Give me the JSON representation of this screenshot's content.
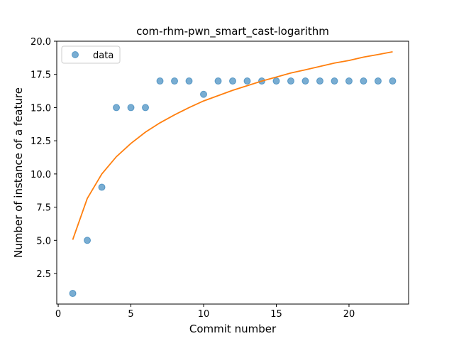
{
  "chart_data": {
    "type": "scatter",
    "title": "com-rhm-pwn_smart_cast-logarithm",
    "xlabel": "Commit number",
    "ylabel": "Number of instance of a feature",
    "xlim": [
      -0.1,
      24.1
    ],
    "ylim": [
      0.2,
      20.0
    ],
    "xticks": [
      0,
      5,
      10,
      15,
      20
    ],
    "yticks": [
      2.5,
      5.0,
      7.5,
      10.0,
      12.5,
      15.0,
      17.5,
      20.0
    ],
    "ytick_labels": [
      "2.5",
      "5.0",
      "7.5",
      "10.0",
      "12.5",
      "15.0",
      "17.5",
      "20.0"
    ],
    "legend_position": "upper-left",
    "grid": false,
    "series": [
      {
        "name": "data",
        "kind": "scatter",
        "color": "#1f77b4",
        "x": [
          1,
          2,
          3,
          4,
          5,
          6,
          7,
          8,
          9,
          10,
          11,
          12,
          13,
          14,
          15,
          16,
          17,
          18,
          19,
          20,
          21,
          22,
          23
        ],
        "y": [
          1,
          5,
          9,
          15,
          15,
          15,
          17,
          17,
          17,
          16,
          17,
          17,
          17,
          17,
          17,
          17,
          17,
          17,
          17,
          17,
          17,
          17,
          17
        ]
      },
      {
        "kind": "line",
        "color": "#ff7f0e",
        "x": [
          1,
          2,
          3,
          4,
          5,
          6,
          7,
          8,
          9,
          10,
          11,
          12,
          13,
          14,
          15,
          16,
          17,
          18,
          19,
          20,
          21,
          22,
          23
        ],
        "y": [
          5.05,
          8.15,
          10.0,
          11.3,
          12.3,
          13.15,
          13.85,
          14.45,
          15.0,
          15.5,
          15.9,
          16.3,
          16.65,
          17.0,
          17.3,
          17.6,
          17.85,
          18.1,
          18.35,
          18.55,
          18.8,
          19.0,
          19.2
        ]
      }
    ]
  }
}
